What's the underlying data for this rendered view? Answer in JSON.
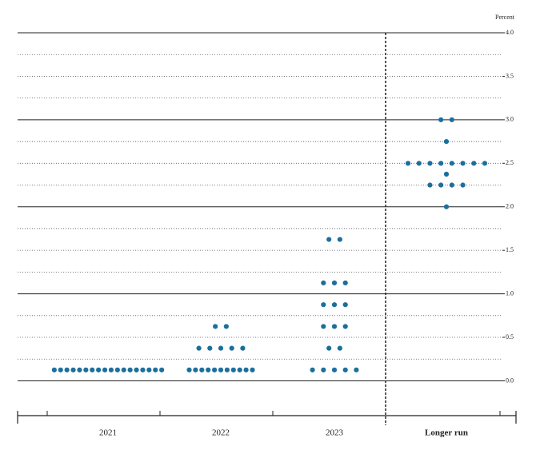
{
  "chart_data": {
    "type": "dot",
    "y_unit_label": "Percent",
    "categories": [
      "2021",
      "2022",
      "2023",
      "Longer run"
    ],
    "values": [
      [
        0.125,
        0.125,
        0.125,
        0.125,
        0.125,
        0.125,
        0.125,
        0.125,
        0.125,
        0.125,
        0.125,
        0.125,
        0.125,
        0.125,
        0.125,
        0.125,
        0.125,
        0.125
      ],
      [
        0.125,
        0.125,
        0.125,
        0.125,
        0.125,
        0.125,
        0.125,
        0.125,
        0.125,
        0.125,
        0.125,
        0.375,
        0.375,
        0.375,
        0.375,
        0.375,
        0.625,
        0.625
      ],
      [
        0.125,
        0.125,
        0.125,
        0.125,
        0.125,
        0.375,
        0.375,
        0.625,
        0.625,
        0.625,
        0.875,
        0.875,
        0.875,
        1.125,
        1.125,
        1.125,
        1.625,
        1.625
      ],
      [
        2.0,
        2.25,
        2.25,
        2.25,
        2.25,
        2.375,
        2.5,
        2.5,
        2.5,
        2.5,
        2.5,
        2.5,
        2.5,
        2.5,
        2.75,
        3.0,
        3.0
      ]
    ],
    "color": "#1b6f9c",
    "ylim": [
      -0.4,
      4.0
    ],
    "yticks": [
      {
        "value": 0,
        "label": "0.0"
      },
      0.5,
      {
        "value": 1,
        "label": "1.0"
      },
      1.5,
      {
        "value": 2,
        "label": "2.0"
      },
      2.5,
      {
        "value": 3,
        "label": "3.0"
      },
      3.5,
      {
        "value": 4,
        "label": "4.0"
      }
    ],
    "grid_values": [
      0,
      0.25,
      0.5,
      0.75,
      1,
      1.25,
      1.5,
      1.75,
      2,
      2.25,
      2.5,
      2.75,
      3,
      3.25,
      3.5,
      3.75,
      4
    ],
    "grid": true
  }
}
